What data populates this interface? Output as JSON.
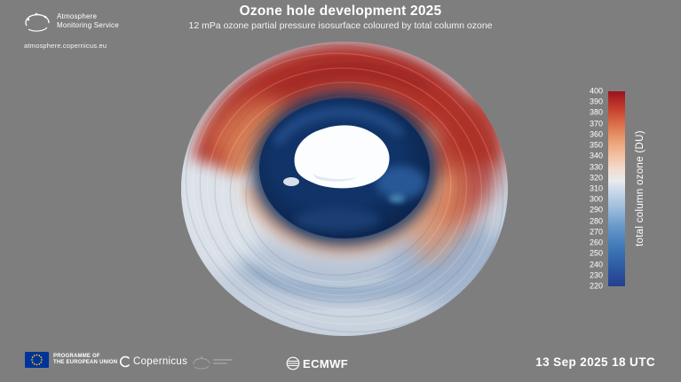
{
  "header": {
    "title": "Ozone hole development 2025",
    "subtitle": "12 mPa ozone partial pressure isosurface coloured by total column ozone"
  },
  "branding": {
    "service_line1": "Atmosphere",
    "service_line2": "Monitoring Service",
    "website": "atmosphere.copernicus.eu"
  },
  "footer": {
    "eu_line1": "PROGRAMME OF",
    "eu_line2": "THE EUROPEAN UNION",
    "copernicus_label": "Copernicus",
    "ecmwf_label": "ECMWF",
    "timestamp": "13 Sep 2025 18 UTC"
  },
  "chart_data": {
    "type": "heatmap",
    "subtype": "3d-isosurface-polar-view",
    "title": "Ozone hole development 2025",
    "subtitle": "12 mPa ozone partial pressure isosurface coloured by total column ozone",
    "isosurface_level": "12 mPa ozone partial pressure",
    "colour_variable": "total column ozone",
    "unit": "DU",
    "timestamp": "13 Sep 2025 18 UTC",
    "colorbar": {
      "label": "total column ozone (DU)",
      "min": 220,
      "max": 400,
      "tick_step": 10,
      "ticks": [
        400,
        390,
        380,
        370,
        360,
        350,
        340,
        330,
        320,
        310,
        300,
        290,
        280,
        270,
        260,
        250,
        240,
        230,
        220
      ],
      "orientation": "vertical",
      "position": "right",
      "gradient_stops": [
        "#243f8f 0%",
        "#2c55a0 8%",
        "#3a73b4 18%",
        "#6496c8 30%",
        "#9dbcdc 40%",
        "#c6d6e8 48%",
        "#e8eaee 54%",
        "#f2dcce 60%",
        "#f2bd9c 68%",
        "#e8996e 76%",
        "#d96a46 84%",
        "#c13a2c 92%",
        "#9c1220 100%"
      ]
    },
    "scene_notes": "View from above the South Pole; Antarctica visible through the central ozone hole (dark blue, low values); surrounding collar of high total column ozone shown in red"
  }
}
